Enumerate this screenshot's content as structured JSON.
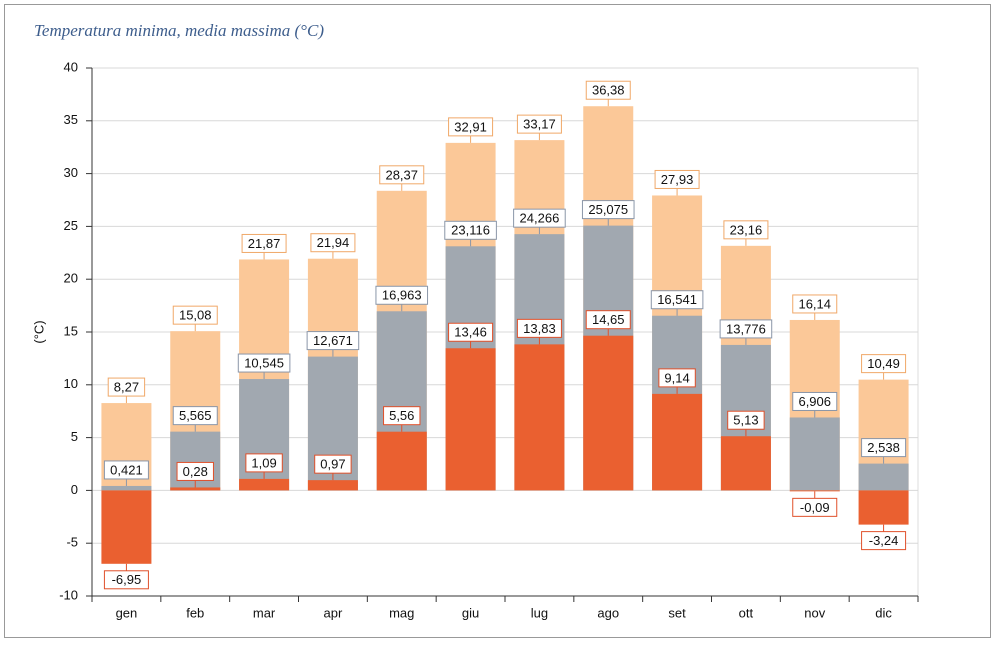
{
  "chart_data": {
    "type": "bar",
    "title": "Temperatura minima, media massima (°C)",
    "y_label": "(°C)",
    "categories": [
      "gen",
      "feb",
      "mar",
      "apr",
      "mag",
      "giu",
      "lug",
      "ago",
      "set",
      "ott",
      "nov",
      "dic"
    ],
    "series": [
      {
        "color": "#fbc898",
        "label_border": "#f0a868",
        "values": [
          8.27,
          15.08,
          21.87,
          21.94,
          28.37,
          32.91,
          33.17,
          36.38,
          27.93,
          23.16,
          16.14,
          10.49
        ],
        "value_labels": [
          "8,27",
          "15,08",
          "21,87",
          "21,94",
          "28,37",
          "32,91",
          "33,17",
          "36,38",
          "27,93",
          "23,16",
          "16,14",
          "10,49"
        ]
      },
      {
        "color": "#a1a8b0",
        "label_border": "#8a96a8",
        "values": [
          0.421,
          5.565,
          10.545,
          12.671,
          16.963,
          23.116,
          24.266,
          25.075,
          16.541,
          13.776,
          6.906,
          2.538
        ],
        "value_labels": [
          "0,421",
          "5,565",
          "10,545",
          "12,671",
          "16,963",
          "23,116",
          "24,266",
          "25,075",
          "16,541",
          "13,776",
          "6,906",
          "2,538"
        ]
      },
      {
        "color": "#ea6030",
        "label_border": "#e0502a",
        "values": [
          -6.95,
          0.28,
          1.09,
          0.97,
          5.56,
          13.46,
          13.83,
          14.65,
          9.14,
          5.13,
          -0.09,
          -3.24
        ],
        "value_labels": [
          "-6,95",
          "0,28",
          "1,09",
          "0,97",
          "5,56",
          "13,46",
          "13,83",
          "14,65",
          "9,14",
          "5,13",
          "-0,09",
          "-3,24"
        ]
      }
    ],
    "ylim": [
      -10,
      40
    ],
    "yticks": [
      -10,
      -5,
      0,
      5,
      10,
      15,
      20,
      25,
      30,
      35,
      40
    ],
    "grid": true
  }
}
